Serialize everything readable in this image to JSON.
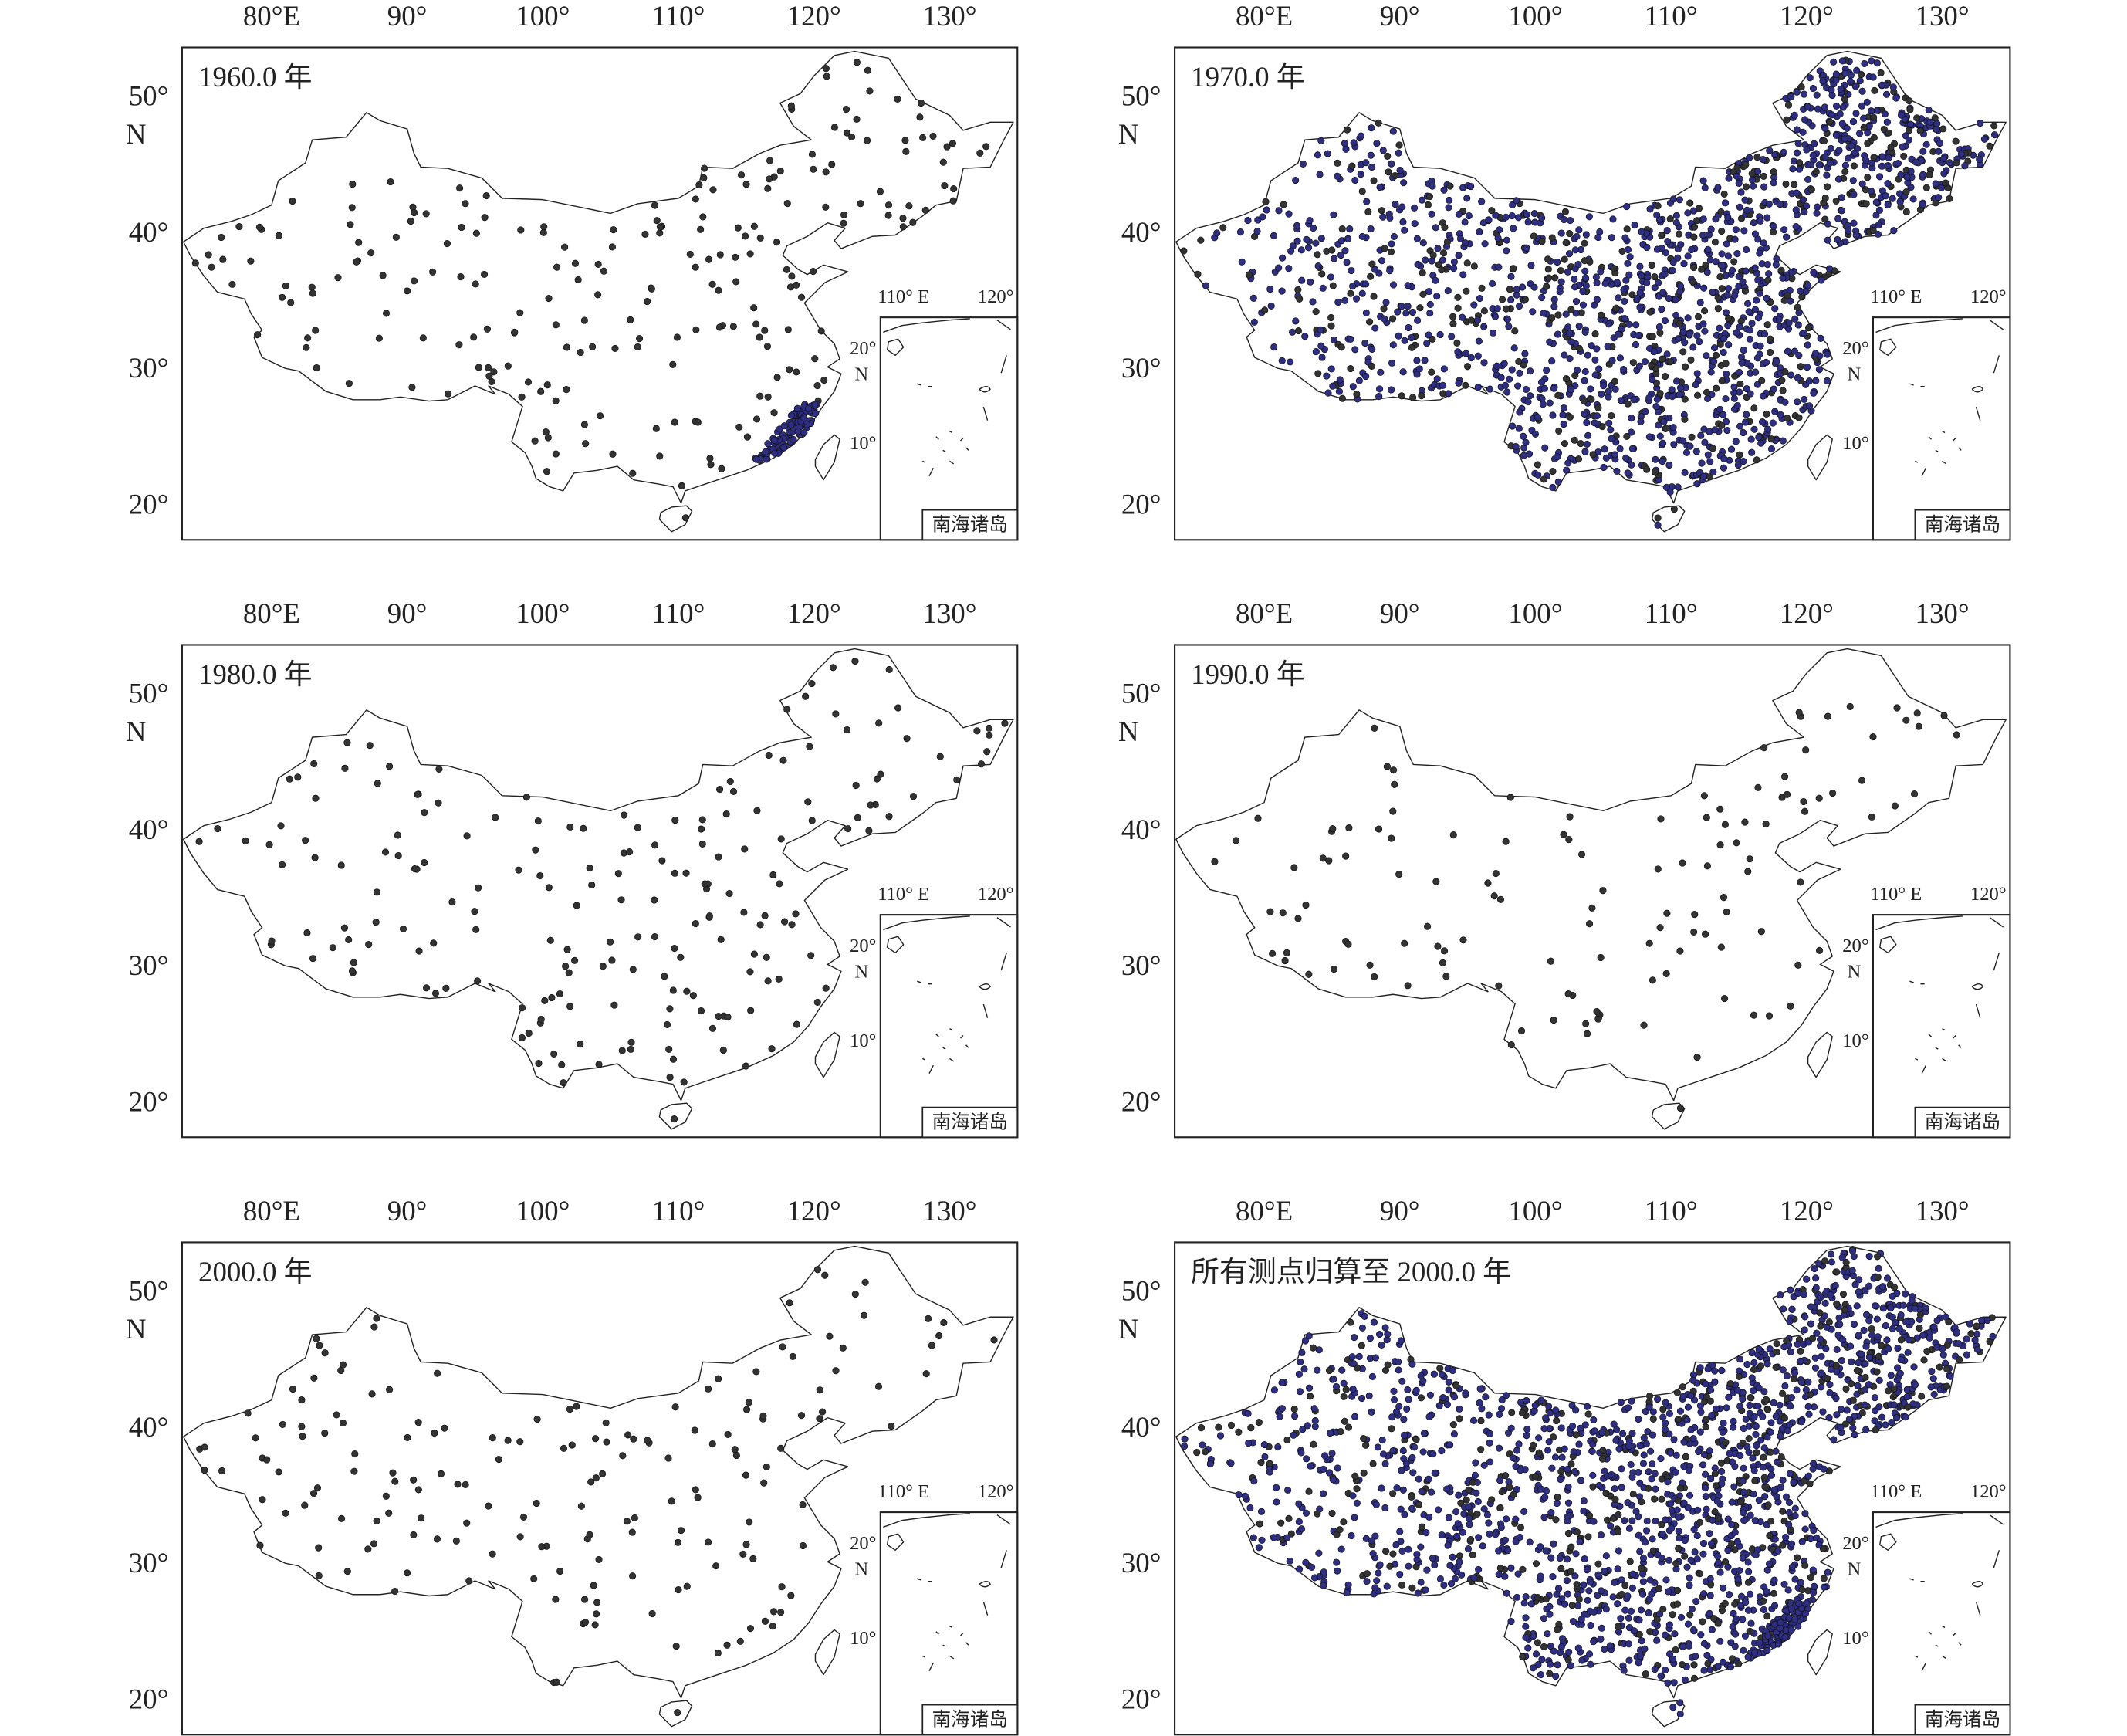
{
  "axes": {
    "x_ticks": [
      "80°E",
      "90°",
      "100°",
      "110°",
      "120°",
      "130°"
    ],
    "y_ticks": [
      "50°",
      "40°",
      "30°",
      "20°"
    ],
    "y_unit": "N"
  },
  "inset": {
    "x_ticks": [
      "110° E",
      "120°"
    ],
    "y_ticks": [
      "20°",
      "10°"
    ],
    "y_unit": "N",
    "label": "南海诸岛"
  },
  "panels": [
    {
      "title": "1960.0 年"
    },
    {
      "title": "1970.0 年"
    },
    {
      "title": "1980.0 年"
    },
    {
      "title": "1990.0 年"
    },
    {
      "title": "2000.0 年"
    },
    {
      "title": "所有测点归算至 2000.0 年"
    }
  ]
}
